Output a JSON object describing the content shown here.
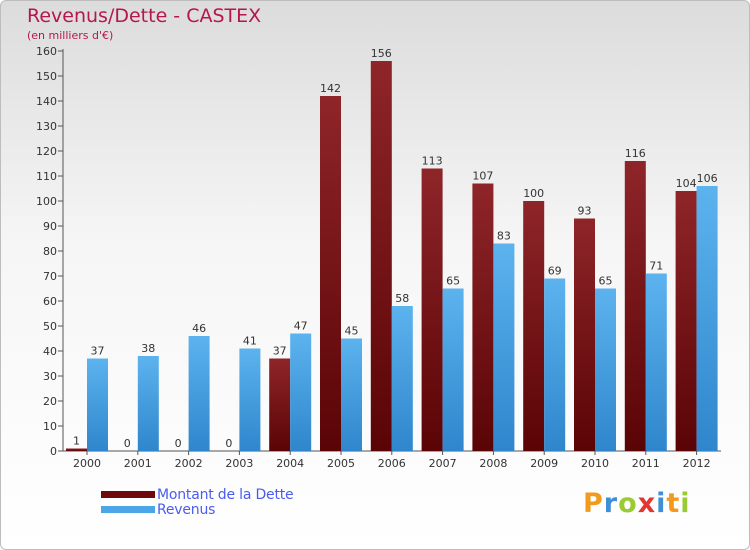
{
  "title": "Revenus/Dette - CASTEX",
  "subtitle": "(en milliers d'€)",
  "colors": {
    "title": "#b5164f",
    "dette": "#6e0a0c",
    "revenus": "#4aa6e6",
    "legend_text": "#4a5cf0"
  },
  "legend": [
    {
      "label": "Montant de la Dette",
      "color": "#6e0a0c"
    },
    {
      "label": "Revenus",
      "color": "#4aa6e6"
    }
  ],
  "logo": {
    "text": "Proxiti",
    "letters": [
      {
        "ch": "P",
        "color": "#f29a1e"
      },
      {
        "ch": "r",
        "color": "#3c8fd8"
      },
      {
        "ch": "o",
        "color": "#9acb34"
      },
      {
        "ch": "x",
        "color": "#e2362f"
      },
      {
        "ch": "i",
        "color": "#3c8fd8"
      },
      {
        "ch": "t",
        "color": "#f29a1e"
      },
      {
        "ch": "i",
        "color": "#9acb34"
      }
    ]
  },
  "chart_data": {
    "type": "bar",
    "categories": [
      "2000",
      "2001",
      "2002",
      "2003",
      "2004",
      "2005",
      "2006",
      "2007",
      "2008",
      "2009",
      "2010",
      "2011",
      "2012"
    ],
    "series": [
      {
        "name": "Montant de la Dette",
        "values": [
          1,
          0,
          0,
          0,
          37,
          142,
          156,
          113,
          107,
          100,
          93,
          116,
          104
        ]
      },
      {
        "name": "Revenus",
        "values": [
          37,
          38,
          46,
          41,
          47,
          45,
          58,
          65,
          83,
          69,
          65,
          71,
          106
        ]
      }
    ],
    "ylim": [
      0,
      160
    ],
    "yticks": [
      0,
      10,
      20,
      30,
      40,
      50,
      60,
      70,
      80,
      90,
      100,
      110,
      120,
      130,
      140,
      150,
      160
    ],
    "grid": false,
    "legend_position": "bottom-left"
  }
}
